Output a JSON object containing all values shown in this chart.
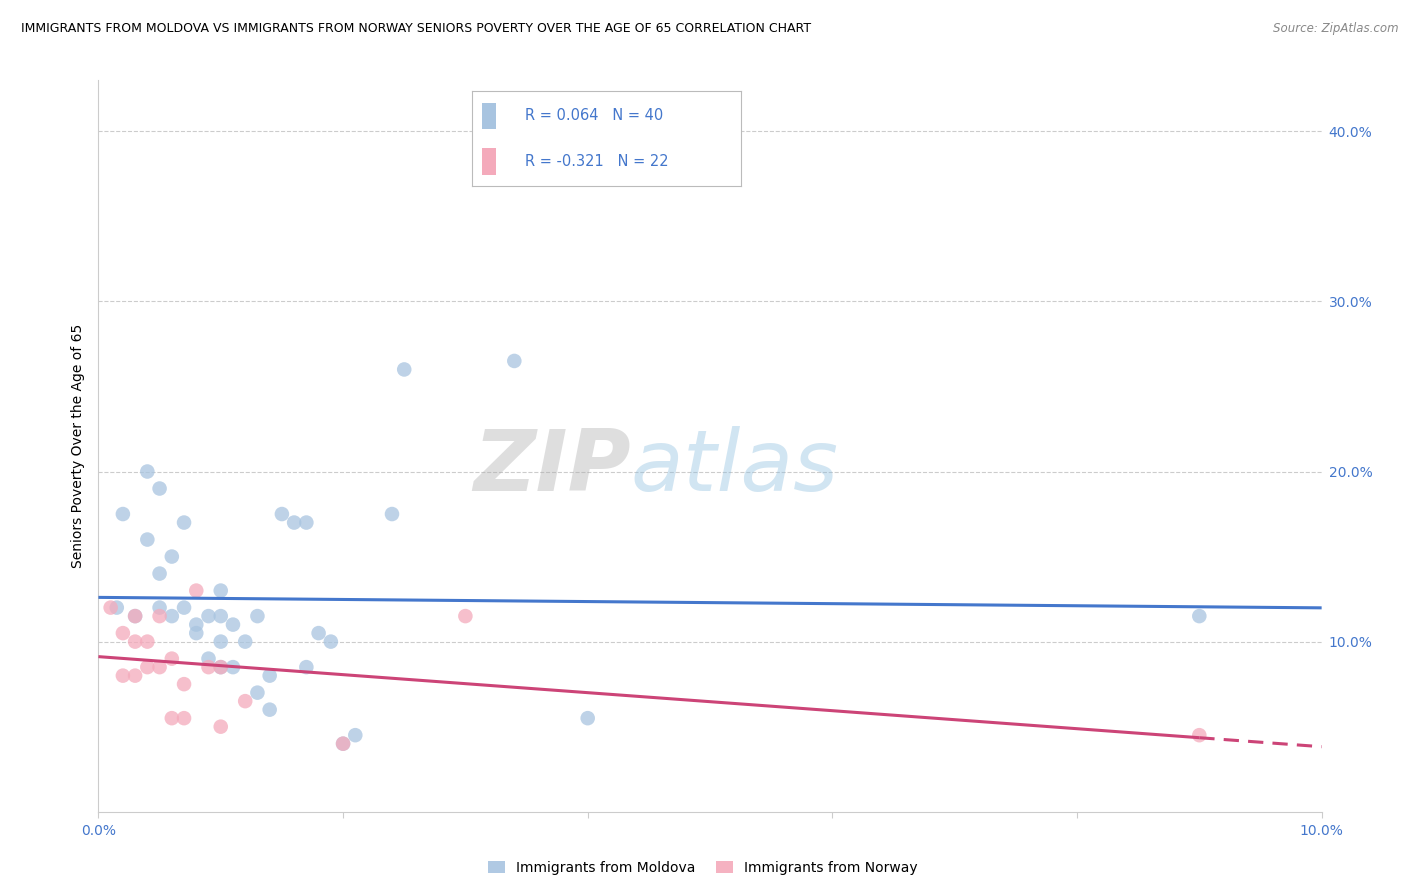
{
  "title": "IMMIGRANTS FROM MOLDOVA VS IMMIGRANTS FROM NORWAY SENIORS POVERTY OVER THE AGE OF 65 CORRELATION CHART",
  "source": "Source: ZipAtlas.com",
  "ylabel": "Seniors Poverty Over the Age of 65",
  "xlim": [
    0.0,
    0.1
  ],
  "ylim": [
    0.0,
    0.43
  ],
  "right_yticks": [
    0.1,
    0.2,
    0.3,
    0.4
  ],
  "right_ytick_labels": [
    "10.0%",
    "20.0%",
    "30.0%",
    "40.0%"
  ],
  "bottom_xticks": [
    0.0,
    0.02,
    0.04,
    0.06,
    0.08,
    0.1
  ],
  "bottom_xtick_labels_visible": [
    "0.0%",
    "",
    "",
    "",
    "",
    "10.0%"
  ],
  "legend_r_moldova": "R = 0.064",
  "legend_n_moldova": "N = 40",
  "legend_r_norway": "R = -0.321",
  "legend_n_norway": "N = 22",
  "moldova_color": "#A8C4E0",
  "norway_color": "#F4AABB",
  "trend_moldova_color": "#4477CC",
  "trend_norway_color": "#CC4477",
  "axis_tick_color": "#4477CC",
  "background_color": "#FFFFFF",
  "moldova_scatter": [
    [
      0.0015,
      0.12
    ],
    [
      0.002,
      0.175
    ],
    [
      0.003,
      0.115
    ],
    [
      0.004,
      0.16
    ],
    [
      0.004,
      0.2
    ],
    [
      0.005,
      0.14
    ],
    [
      0.005,
      0.12
    ],
    [
      0.005,
      0.19
    ],
    [
      0.006,
      0.15
    ],
    [
      0.006,
      0.115
    ],
    [
      0.007,
      0.17
    ],
    [
      0.007,
      0.12
    ],
    [
      0.008,
      0.11
    ],
    [
      0.008,
      0.105
    ],
    [
      0.009,
      0.09
    ],
    [
      0.009,
      0.115
    ],
    [
      0.01,
      0.1
    ],
    [
      0.01,
      0.085
    ],
    [
      0.01,
      0.115
    ],
    [
      0.01,
      0.13
    ],
    [
      0.011,
      0.11
    ],
    [
      0.011,
      0.085
    ],
    [
      0.012,
      0.1
    ],
    [
      0.013,
      0.115
    ],
    [
      0.013,
      0.07
    ],
    [
      0.014,
      0.08
    ],
    [
      0.014,
      0.06
    ],
    [
      0.015,
      0.175
    ],
    [
      0.016,
      0.17
    ],
    [
      0.017,
      0.17
    ],
    [
      0.017,
      0.085
    ],
    [
      0.018,
      0.105
    ],
    [
      0.019,
      0.1
    ],
    [
      0.02,
      0.04
    ],
    [
      0.021,
      0.045
    ],
    [
      0.024,
      0.175
    ],
    [
      0.025,
      0.26
    ],
    [
      0.034,
      0.265
    ],
    [
      0.04,
      0.055
    ],
    [
      0.09,
      0.115
    ]
  ],
  "norway_scatter": [
    [
      0.001,
      0.12
    ],
    [
      0.002,
      0.105
    ],
    [
      0.002,
      0.08
    ],
    [
      0.003,
      0.115
    ],
    [
      0.003,
      0.1
    ],
    [
      0.003,
      0.08
    ],
    [
      0.004,
      0.1
    ],
    [
      0.004,
      0.085
    ],
    [
      0.005,
      0.115
    ],
    [
      0.005,
      0.085
    ],
    [
      0.006,
      0.09
    ],
    [
      0.006,
      0.055
    ],
    [
      0.007,
      0.075
    ],
    [
      0.007,
      0.055
    ],
    [
      0.008,
      0.13
    ],
    [
      0.009,
      0.085
    ],
    [
      0.01,
      0.085
    ],
    [
      0.01,
      0.05
    ],
    [
      0.012,
      0.065
    ],
    [
      0.02,
      0.04
    ],
    [
      0.03,
      0.115
    ],
    [
      0.09,
      0.045
    ]
  ],
  "moldova_size": 110,
  "norway_size": 110
}
